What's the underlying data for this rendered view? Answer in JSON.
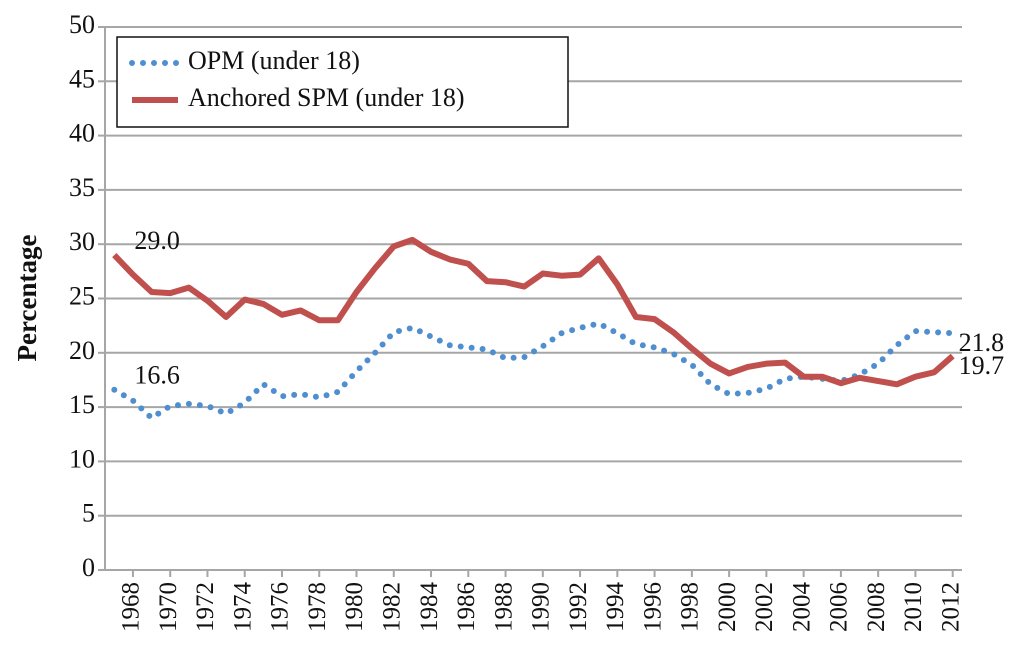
{
  "chart_data": {
    "type": "line",
    "y_label": "Percentage",
    "x": [
      1967,
      1968,
      1969,
      1970,
      1971,
      1972,
      1973,
      1974,
      1975,
      1976,
      1977,
      1978,
      1979,
      1980,
      1981,
      1982,
      1983,
      1984,
      1985,
      1986,
      1987,
      1988,
      1989,
      1990,
      1991,
      1992,
      1993,
      1994,
      1995,
      1996,
      1997,
      1998,
      1999,
      2000,
      2001,
      2002,
      2003,
      2004,
      2005,
      2006,
      2007,
      2008,
      2009,
      2010,
      2011,
      2012
    ],
    "xlim": [
      1966.5,
      2012.5
    ],
    "xticks": [
      1968,
      1970,
      1972,
      1974,
      1976,
      1978,
      1980,
      1982,
      1984,
      1986,
      1988,
      1990,
      1992,
      1994,
      1996,
      1998,
      2000,
      2002,
      2004,
      2006,
      2008,
      2010,
      2012
    ],
    "ylim": [
      0,
      50
    ],
    "yticks": [
      0,
      5,
      10,
      15,
      20,
      25,
      30,
      35,
      40,
      45,
      50
    ],
    "grid": true,
    "legend": "upper left",
    "series": [
      {
        "name": "OPM (under 18)",
        "color": "#4f8fcf",
        "style": "dotted",
        "values": [
          16.6,
          15.6,
          14.0,
          15.1,
          15.3,
          15.1,
          14.4,
          15.4,
          17.1,
          16.0,
          16.2,
          15.9,
          16.4,
          18.3,
          20.0,
          21.9,
          22.3,
          21.5,
          20.7,
          20.5,
          20.3,
          19.5,
          19.6,
          20.6,
          21.8,
          22.3,
          22.7,
          21.8,
          20.8,
          20.5,
          19.9,
          18.9,
          17.1,
          16.2,
          16.3,
          16.7,
          17.6,
          17.8,
          17.6,
          17.4,
          18.0,
          19.0,
          20.7,
          22.0,
          21.9,
          21.8
        ],
        "value_labels": [
          "16.6",
          null,
          null,
          null,
          null,
          null,
          null,
          null,
          null,
          null,
          null,
          null,
          null,
          null,
          null,
          null,
          null,
          null,
          null,
          null,
          null,
          null,
          null,
          null,
          null,
          null,
          null,
          null,
          null,
          null,
          null,
          null,
          null,
          null,
          null,
          null,
          null,
          null,
          null,
          null,
          null,
          null,
          null,
          null,
          null,
          "21.8"
        ]
      },
      {
        "name": "Anchored SPM (under 18)",
        "color": "#c0504d",
        "style": "solid",
        "values": [
          29.0,
          27.2,
          25.6,
          25.5,
          26.0,
          24.8,
          23.3,
          24.9,
          24.5,
          23.5,
          23.9,
          23.0,
          23.0,
          25.6,
          27.8,
          29.8,
          30.4,
          29.3,
          28.6,
          28.2,
          26.6,
          26.5,
          26.1,
          27.3,
          27.1,
          27.2,
          28.7,
          26.3,
          23.3,
          23.1,
          21.9,
          20.4,
          19.0,
          18.1,
          18.7,
          19.0,
          19.1,
          17.8,
          17.8,
          17.2,
          17.7,
          17.4,
          17.1,
          17.8,
          18.2,
          19.7
        ],
        "value_labels": [
          "29.0",
          null,
          null,
          null,
          null,
          null,
          null,
          null,
          null,
          null,
          null,
          null,
          null,
          null,
          null,
          null,
          null,
          null,
          null,
          null,
          null,
          null,
          null,
          null,
          null,
          null,
          null,
          null,
          null,
          null,
          null,
          null,
          null,
          null,
          null,
          null,
          null,
          null,
          null,
          null,
          null,
          null,
          null,
          null,
          null,
          "19.7"
        ]
      }
    ]
  }
}
